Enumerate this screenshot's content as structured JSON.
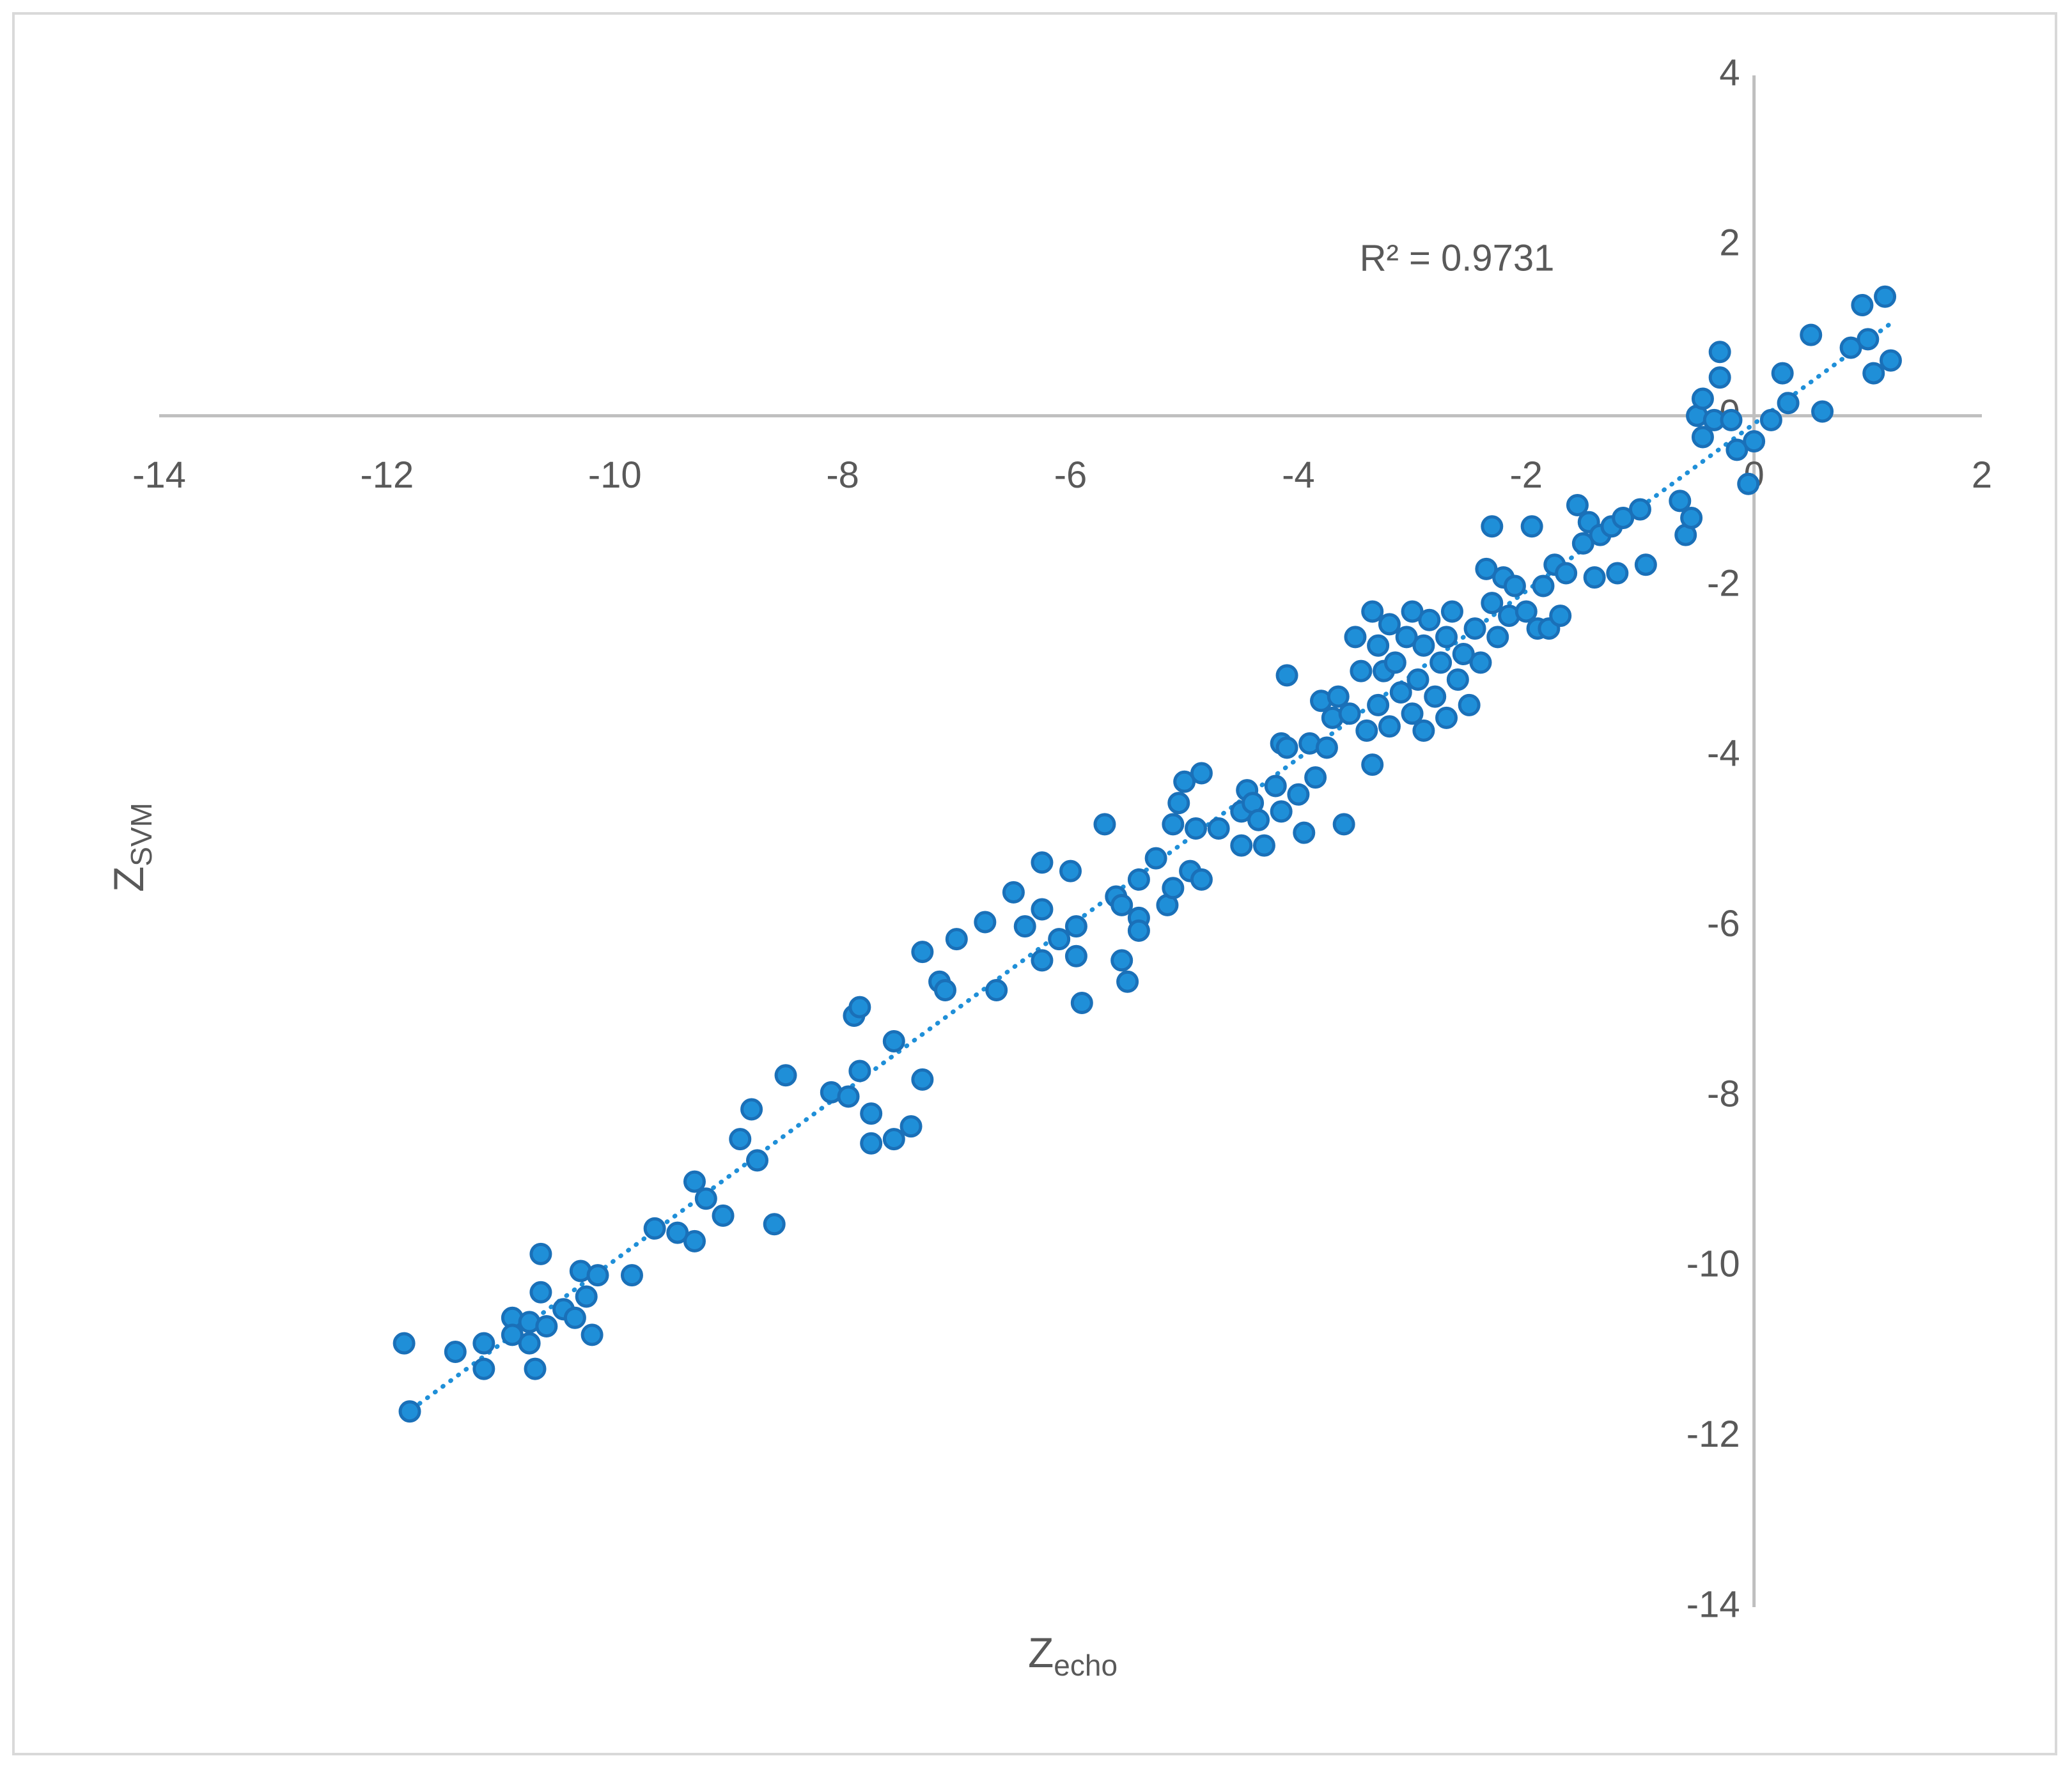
{
  "chart_data": {
    "type": "scatter",
    "annotation": "R² = 0.9731",
    "xlabel": {
      "text": "Z",
      "subscript": "echo"
    },
    "ylabel": {
      "text": "Z",
      "subscript": "SVM"
    },
    "xlim": [
      -14,
      2
    ],
    "ylim": [
      -14,
      4
    ],
    "xticks": [
      -14,
      -12,
      -10,
      -8,
      -6,
      -4,
      -2,
      0,
      2
    ],
    "yticks": [
      -14,
      -12,
      -10,
      -8,
      -6,
      -4,
      -2,
      0,
      2,
      4
    ],
    "trendline": true,
    "series": [
      {
        "color": "#1f8fd8",
        "edge": "#1a70b8",
        "x": [
          -11.85,
          -11.8,
          -11.4,
          -11.15,
          -11.15,
          -10.9,
          -10.9,
          -10.75,
          -10.75,
          -10.7,
          -10.65,
          -10.65,
          -10.6,
          -10.45,
          -10.35,
          -10.3,
          -10.25,
          -10.2,
          -10.15,
          -9.85,
          -9.65,
          -9.45,
          -9.3,
          -9.3,
          -9.2,
          -9.05,
          -8.9,
          -8.8,
          -8.75,
          -8.6,
          -8.5,
          -8.1,
          -7.95,
          -7.9,
          -7.85,
          -7.85,
          -7.75,
          -7.75,
          -7.55,
          -7.55,
          -7.4,
          -7.3,
          -7.3,
          -7.15,
          -7.1,
          -7.0,
          -6.75,
          -6.65,
          -6.5,
          -6.4,
          -6.25,
          -6.25,
          -6.25,
          -6.1,
          -6.0,
          -5.95,
          -5.95,
          -5.9,
          -5.7,
          -5.6,
          -5.55,
          -5.55,
          -5.5,
          -5.4,
          -5.4,
          -5.4,
          -5.25,
          -5.15,
          -5.1,
          -5.1,
          -5.05,
          -5.0,
          -4.95,
          -4.9,
          -4.85,
          -4.85,
          -4.7,
          -4.5,
          -4.5,
          -4.45,
          -4.4,
          -4.35,
          -4.3,
          -4.2,
          -4.15,
          -4.15,
          -4.1,
          -4.1,
          -4.0,
          -3.95,
          -3.9,
          -3.85,
          -3.8,
          -3.75,
          -3.7,
          -3.65,
          -3.6,
          -3.55,
          -3.5,
          -3.45,
          -3.4,
          -3.35,
          -3.35,
          -3.3,
          -3.3,
          -3.25,
          -3.2,
          -3.2,
          -3.15,
          -3.1,
          -3.05,
          -3.0,
          -3.0,
          -2.95,
          -2.9,
          -2.9,
          -2.85,
          -2.8,
          -2.75,
          -2.7,
          -2.7,
          -2.65,
          -2.6,
          -2.55,
          -2.5,
          -2.45,
          -2.4,
          -2.35,
          -2.3,
          -2.3,
          -2.25,
          -2.2,
          -2.15,
          -2.1,
          -2.0,
          -1.95,
          -1.9,
          -1.85,
          -1.8,
          -1.75,
          -1.7,
          -1.65,
          -1.55,
          -1.5,
          -1.45,
          -1.4,
          -1.35,
          -1.25,
          -1.2,
          -1.15,
          -1.0,
          -0.95,
          -0.65,
          -0.6,
          -0.55,
          -0.5,
          -0.45,
          -0.45,
          -0.35,
          -0.3,
          -0.3,
          -0.2,
          -0.15,
          -0.05,
          0.0,
          0.15,
          0.25,
          0.3,
          0.5,
          0.6,
          0.85,
          0.95,
          1.0,
          1.05,
          1.15,
          1.2
        ],
        "y": [
          -10.9,
          -11.7,
          -11.0,
          -10.9,
          -11.2,
          -10.6,
          -10.8,
          -10.65,
          -10.9,
          -11.2,
          -10.3,
          -9.85,
          -10.7,
          -10.5,
          -10.6,
          -10.05,
          -10.35,
          -10.8,
          -10.1,
          -10.1,
          -9.55,
          -9.6,
          -9.0,
          -9.7,
          -9.2,
          -9.4,
          -8.5,
          -8.15,
          -8.75,
          -9.5,
          -7.75,
          -7.95,
          -8.0,
          -7.05,
          -6.95,
          -7.7,
          -8.2,
          -8.55,
          -8.5,
          -7.35,
          -8.35,
          -6.3,
          -7.8,
          -6.65,
          -6.75,
          -6.15,
          -5.95,
          -6.75,
          -5.6,
          -6.0,
          -5.8,
          -6.4,
          -5.25,
          -6.15,
          -5.35,
          -6.35,
          -6.0,
          -6.9,
          -4.8,
          -5.65,
          -5.75,
          -6.4,
          -6.65,
          -5.9,
          -6.05,
          -5.45,
          -5.2,
          -5.75,
          -5.55,
          -4.8,
          -4.55,
          -4.3,
          -5.35,
          -4.85,
          -4.2,
          -5.45,
          -4.85,
          -4.65,
          -5.05,
          -4.4,
          -4.55,
          -4.75,
          -5.05,
          -4.35,
          -4.65,
          -3.85,
          -3.05,
          -3.9,
          -4.45,
          -4.9,
          -3.85,
          -4.25,
          -3.35,
          -3.9,
          -3.55,
          -3.3,
          -4.8,
          -3.5,
          -2.6,
          -3.0,
          -3.7,
          -2.3,
          -4.1,
          -3.4,
          -2.7,
          -3.0,
          -2.45,
          -3.65,
          -2.9,
          -3.25,
          -2.6,
          -3.5,
          -2.3,
          -3.1,
          -2.7,
          -3.7,
          -2.4,
          -3.3,
          -2.9,
          -2.6,
          -3.55,
          -2.3,
          -3.1,
          -2.8,
          -3.4,
          -2.5,
          -2.9,
          -1.8,
          -2.2,
          -1.3,
          -2.6,
          -1.9,
          -2.35,
          -2.0,
          -2.3,
          -1.3,
          -2.5,
          -2.0,
          -2.5,
          -1.75,
          -2.35,
          -1.85,
          -1.05,
          -1.5,
          -1.25,
          -1.9,
          -1.4,
          -1.3,
          -1.85,
          -1.2,
          -1.1,
          -1.75,
          -1.0,
          -1.4,
          -1.2,
          0.0,
          0.2,
          -0.25,
          -0.05,
          0.45,
          0.75,
          -0.05,
          -0.4,
          -0.8,
          -0.3,
          -0.05,
          0.5,
          0.15,
          0.95,
          0.05,
          0.8,
          1.3,
          0.9,
          0.5,
          1.4,
          0.65
        ]
      }
    ]
  }
}
